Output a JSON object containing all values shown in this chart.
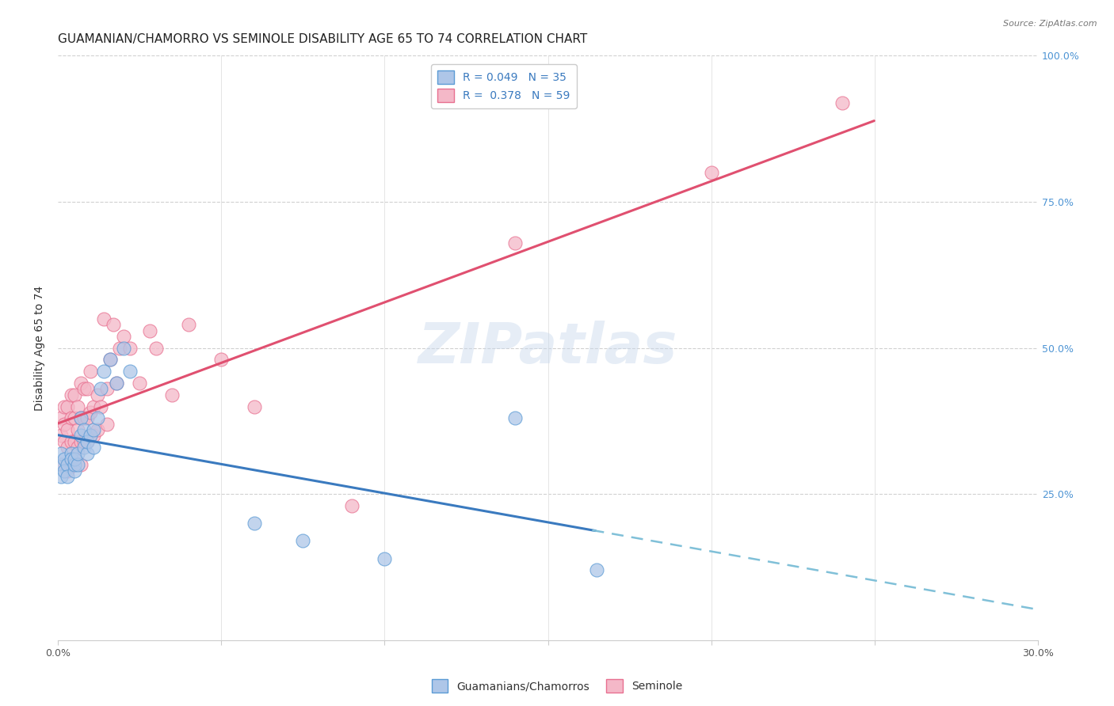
{
  "title": "GUAMANIAN/CHAMORRO VS SEMINOLE DISABILITY AGE 65 TO 74 CORRELATION CHART",
  "source": "Source: ZipAtlas.com",
  "ylabel": "Disability Age 65 to 74",
  "right_yticks": [
    0.0,
    0.25,
    0.5,
    0.75,
    1.0
  ],
  "right_yticklabels": [
    "",
    "25.0%",
    "50.0%",
    "75.0%",
    "100.0%"
  ],
  "xlim": [
    0.0,
    0.3
  ],
  "ylim": [
    0.0,
    1.0
  ],
  "series1_name": "Guamanians/Chamorros",
  "series1_R": 0.049,
  "series1_N": 35,
  "series1_color": "#aec6e8",
  "series1_edge_color": "#5b9bd5",
  "series1_line_color": "#3a7abf",
  "series2_name": "Seminole",
  "series2_R": 0.378,
  "series2_N": 59,
  "series2_color": "#f4b8c8",
  "series2_edge_color": "#e87090",
  "series2_line_color": "#e05070",
  "guam_x": [
    0.001,
    0.001,
    0.001,
    0.002,
    0.002,
    0.003,
    0.003,
    0.004,
    0.004,
    0.005,
    0.005,
    0.005,
    0.006,
    0.006,
    0.007,
    0.007,
    0.008,
    0.008,
    0.009,
    0.009,
    0.01,
    0.011,
    0.011,
    0.012,
    0.013,
    0.014,
    0.016,
    0.018,
    0.02,
    0.022,
    0.06,
    0.075,
    0.1,
    0.14,
    0.165
  ],
  "guam_y": [
    0.3,
    0.32,
    0.28,
    0.31,
    0.29,
    0.3,
    0.28,
    0.32,
    0.31,
    0.29,
    0.3,
    0.31,
    0.3,
    0.32,
    0.35,
    0.38,
    0.33,
    0.36,
    0.32,
    0.34,
    0.35,
    0.36,
    0.33,
    0.38,
    0.43,
    0.46,
    0.48,
    0.44,
    0.5,
    0.46,
    0.2,
    0.17,
    0.14,
    0.38,
    0.12
  ],
  "seminole_x": [
    0.001,
    0.001,
    0.001,
    0.002,
    0.002,
    0.002,
    0.003,
    0.003,
    0.003,
    0.003,
    0.004,
    0.004,
    0.004,
    0.004,
    0.005,
    0.005,
    0.005,
    0.005,
    0.006,
    0.006,
    0.006,
    0.007,
    0.007,
    0.007,
    0.007,
    0.008,
    0.008,
    0.008,
    0.009,
    0.009,
    0.009,
    0.01,
    0.01,
    0.01,
    0.011,
    0.011,
    0.012,
    0.012,
    0.013,
    0.014,
    0.015,
    0.015,
    0.016,
    0.017,
    0.018,
    0.019,
    0.02,
    0.022,
    0.025,
    0.028,
    0.03,
    0.035,
    0.04,
    0.05,
    0.06,
    0.09,
    0.14,
    0.2,
    0.24
  ],
  "seminole_y": [
    0.38,
    0.35,
    0.3,
    0.34,
    0.37,
    0.4,
    0.29,
    0.33,
    0.36,
    0.4,
    0.3,
    0.34,
    0.38,
    0.42,
    0.31,
    0.34,
    0.38,
    0.42,
    0.33,
    0.36,
    0.4,
    0.3,
    0.34,
    0.38,
    0.44,
    0.34,
    0.38,
    0.43,
    0.34,
    0.38,
    0.43,
    0.35,
    0.39,
    0.46,
    0.35,
    0.4,
    0.36,
    0.42,
    0.4,
    0.55,
    0.37,
    0.43,
    0.48,
    0.54,
    0.44,
    0.5,
    0.52,
    0.5,
    0.44,
    0.53,
    0.5,
    0.42,
    0.54,
    0.48,
    0.4,
    0.23,
    0.68,
    0.8,
    0.92
  ],
  "background_color": "#ffffff",
  "grid_color": "#e8e8e8",
  "title_fontsize": 11,
  "axis_label_fontsize": 10,
  "tick_fontsize": 9,
  "legend_fontsize": 10,
  "watermark_text": "ZIPatlas",
  "watermark_color": "#c8d8ec",
  "watermark_alpha": 0.45,
  "dash_color": "#80c0d8"
}
